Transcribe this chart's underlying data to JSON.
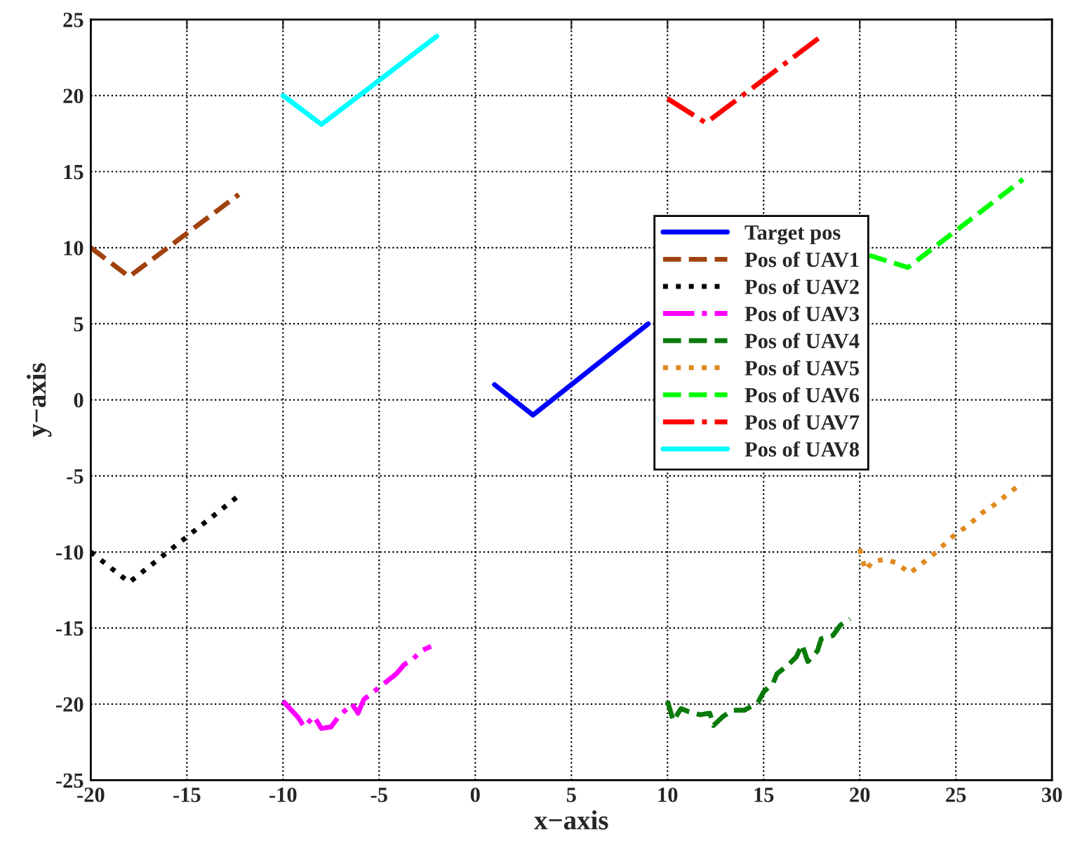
{
  "chart_data": {
    "type": "line",
    "xlabel": "x−axis",
    "ylabel": "y−axis",
    "xlim": [
      -20,
      30
    ],
    "ylim": [
      -25,
      25
    ],
    "xticks": [
      -20,
      -15,
      -10,
      -5,
      0,
      5,
      10,
      15,
      20,
      25,
      30
    ],
    "yticks": [
      -25,
      -20,
      -15,
      -10,
      -5,
      0,
      5,
      10,
      15,
      20,
      25
    ],
    "grid": true,
    "legend": "right",
    "series": [
      {
        "name": "Target pos",
        "color": "#0000ff",
        "line_style": "solid",
        "x": [
          1,
          3,
          9
        ],
        "values": [
          1,
          -1,
          5
        ]
      },
      {
        "name": "Pos of UAV1",
        "color": "#a0420e",
        "line_style": "dashed",
        "x": [
          -20,
          -18,
          -12.3
        ],
        "values": [
          10,
          8.1,
          13.5
        ]
      },
      {
        "name": "Pos of UAV2",
        "color": "#000000",
        "line_style": "dotted",
        "x": [
          -20,
          -18,
          -12.3
        ],
        "values": [
          -10,
          -12,
          -6.3
        ]
      },
      {
        "name": "Pos of UAV3",
        "color": "#ff00ff",
        "line_style": "dashdot",
        "x": [
          -10,
          -9.2,
          -8.9,
          -8.4,
          -8,
          -7.5,
          -7.1,
          -6.4,
          -6.1,
          -5.8,
          -5.2,
          -4.7,
          -4.1,
          -3.7,
          -3.3,
          -2.8,
          -2.3
        ],
        "values": [
          -19.8,
          -20.9,
          -21.5,
          -20.8,
          -21.6,
          -21.5,
          -20.8,
          -20,
          -20.6,
          -19.7,
          -19.1,
          -18.6,
          -18,
          -17.4,
          -17.1,
          -16.5,
          -16.2
        ]
      },
      {
        "name": "Pos of UAV4",
        "color": "#0a7a0a",
        "line_style": "dashed",
        "x": [
          10,
          10.3,
          10.7,
          11.1,
          11.7,
          12.2,
          12.4,
          12.9,
          13.4,
          14,
          14.7,
          15,
          15.5,
          15.7,
          16.3,
          16.7,
          17,
          17.3,
          17.8,
          18,
          18.6,
          19,
          19.5
        ],
        "values": [
          -19.8,
          -21.1,
          -20.3,
          -20.5,
          -20.7,
          -20.6,
          -21.4,
          -20.8,
          -20.4,
          -20.4,
          -19.9,
          -19.2,
          -18.6,
          -18,
          -17.4,
          -16.9,
          -16.1,
          -17.2,
          -16.5,
          -15.7,
          -15.5,
          -14.8,
          -14.4
        ]
      },
      {
        "name": "Pos of UAV5",
        "color": "#e08a1e",
        "line_style": "dotted",
        "x": [
          20,
          20.3,
          20.7,
          21.3,
          21.9,
          22.6,
          23.2,
          23.8,
          24.4,
          25,
          25.6,
          26.4,
          27,
          27.6,
          28.2,
          28.5
        ],
        "values": [
          -9.8,
          -11.2,
          -10.6,
          -10.5,
          -10.7,
          -11.4,
          -10.8,
          -10.2,
          -9.5,
          -8.8,
          -8.3,
          -7.4,
          -6.9,
          -6.3,
          -5.7,
          -5.5
        ]
      },
      {
        "name": "Pos of UAV6",
        "color": "#00ff00",
        "line_style": "dashed",
        "x": [
          20.5,
          22.5,
          28.5
        ],
        "values": [
          9.5,
          8.7,
          14.5
        ]
      },
      {
        "name": "Pos of UAV7",
        "color": "#ff0000",
        "line_style": "dashdot",
        "x": [
          10,
          12,
          18
        ],
        "values": [
          19.8,
          18.2,
          23.9
        ]
      },
      {
        "name": "Pos of UAV8",
        "color": "#00ffff",
        "line_style": "solid",
        "x": [
          -10,
          -8,
          -2
        ],
        "values": [
          20,
          18.1,
          23.9
        ]
      }
    ]
  }
}
